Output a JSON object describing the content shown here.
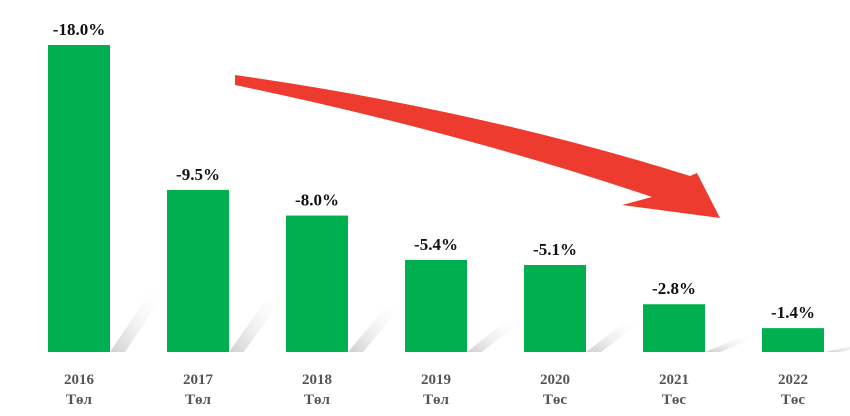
{
  "chart_data": {
    "type": "bar",
    "categories": [
      "2016",
      "2017",
      "2018",
      "2019",
      "2020",
      "2021",
      "2022"
    ],
    "sublabels": [
      "Төл",
      "Төл",
      "Төл",
      "Төл",
      "Төс",
      "Төс",
      "Төс"
    ],
    "values": [
      -18.0,
      -9.5,
      -8.0,
      -5.4,
      -5.1,
      -2.8,
      -1.4
    ],
    "data_labels": [
      "-18.0%",
      "-9.5%",
      "-8.0%",
      "-5.4%",
      "-5.1%",
      "-2.8%",
      "-1.4%"
    ],
    "title": "",
    "xlabel": "",
    "ylabel": "",
    "bars_drawn_as": "magnitude",
    "grid": false,
    "annotation": "red-downward-trend-arrow",
    "colors": {
      "bar": "#00b050",
      "arrow": "#ee3b2f"
    }
  }
}
